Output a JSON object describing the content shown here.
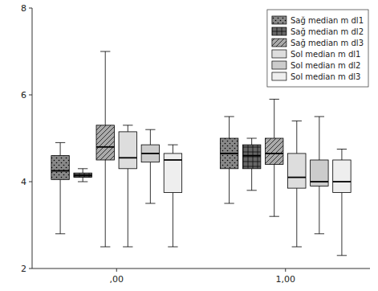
{
  "chart_data": {
    "type": "box",
    "categories": [
      ",00",
      "1,00"
    ],
    "series": [
      {
        "name": "Sağ median m dl1",
        "color": "#888888",
        "whislo": [
          2.8,
          3.5
        ],
        "q1": [
          4.05,
          4.3
        ],
        "med": [
          4.25,
          4.65
        ],
        "q3": [
          4.6,
          5.0
        ],
        "whishi": [
          4.9,
          5.5
        ]
      },
      {
        "name": "Sağ median m dl2",
        "color": "#666666",
        "whislo": [
          4.0,
          3.8
        ],
        "q1": [
          4.1,
          4.3
        ],
        "med": [
          4.15,
          4.6
        ],
        "q3": [
          4.2,
          4.85
        ],
        "whishi": [
          4.3,
          5.0
        ]
      },
      {
        "name": "Sağ median m dl3",
        "color": "#aaaaaa",
        "whislo": [
          2.5,
          3.2
        ],
        "q1": [
          4.5,
          4.4
        ],
        "med": [
          4.8,
          4.65
        ],
        "q3": [
          5.3,
          5.0
        ],
        "whishi": [
          7.0,
          5.9
        ]
      },
      {
        "name": "Sol median m dl1",
        "color": "#dddddd",
        "whislo": [
          2.5,
          2.5
        ],
        "q1": [
          4.3,
          3.85
        ],
        "med": [
          4.55,
          4.1
        ],
        "q3": [
          5.15,
          4.65
        ],
        "whishi": [
          5.3,
          5.4
        ]
      },
      {
        "name": "Sol median m dl2",
        "color": "#cccccc",
        "whislo": [
          3.5,
          2.8
        ],
        "q1": [
          4.45,
          3.9
        ],
        "med": [
          4.65,
          4.0
        ],
        "q3": [
          4.85,
          4.5
        ],
        "whishi": [
          5.2,
          5.5
        ]
      },
      {
        "name": "Sol median m dl3",
        "color": "#eeeeee",
        "whislo": [
          2.5,
          2.3
        ],
        "q1": [
          3.75,
          3.75
        ],
        "med": [
          4.5,
          4.0
        ],
        "q3": [
          4.65,
          4.5
        ],
        "whishi": [
          4.85,
          4.75
        ]
      }
    ],
    "ylim": [
      2,
      8
    ],
    "yticks": [
      2,
      4,
      6,
      8
    ],
    "grid": false,
    "legend": "top-right"
  }
}
